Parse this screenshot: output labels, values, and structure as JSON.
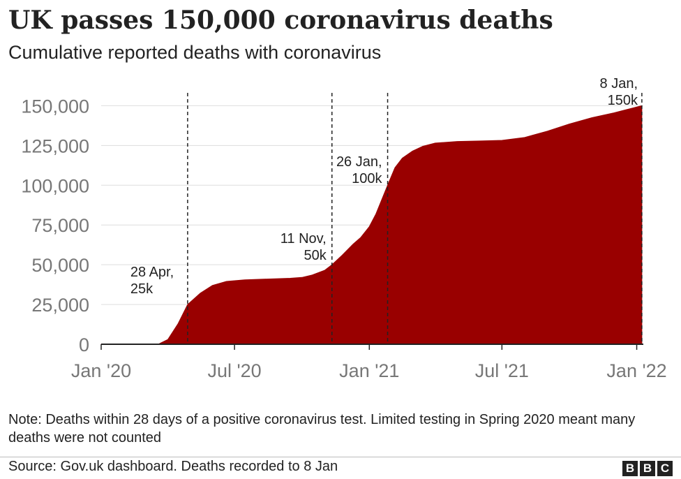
{
  "header": {
    "title": "UK passes 150,000 coronavirus deaths",
    "subtitle": "Cumulative reported deaths with coronavirus"
  },
  "footer": {
    "note": "Note: Deaths within 28 days of a positive coronavirus test. Limited testing in Spring 2020 meant many deaths were not counted",
    "source": "Source: Gov.uk dashboard. Deaths recorded to 8 Jan",
    "logo_letters": [
      "B",
      "B",
      "C"
    ]
  },
  "colors": {
    "area_fill": "#990000",
    "grid": "#dddddd",
    "axis": "#222222",
    "tick_text": "#777777",
    "text": "#222222"
  },
  "chart_data": {
    "type": "area",
    "title": "UK passes 150,000 coronavirus deaths",
    "subtitle": "Cumulative reported deaths with coronavirus",
    "xlabel": "",
    "ylabel": "",
    "xlim": [
      "2020-01-01",
      "2022-01-10"
    ],
    "ylim": [
      0,
      155000
    ],
    "grid": true,
    "yticks": [
      0,
      25000,
      50000,
      75000,
      100000,
      125000,
      150000
    ],
    "ytick_labels": [
      "0",
      "25,000",
      "50,000",
      "75,000",
      "100,000",
      "125,000",
      "150,000"
    ],
    "xticks": [
      "2020-01-01",
      "2020-07-01",
      "2021-01-01",
      "2021-07-01",
      "2022-01-01"
    ],
    "xtick_labels": [
      "Jan '20",
      "Jul '20",
      "Jan '21",
      "Jul '21",
      "Jan '22"
    ],
    "series": [
      {
        "x": [
          "2020-01-01",
          "2020-03-05",
          "2020-03-20",
          "2020-04-01",
          "2020-04-15",
          "2020-04-28",
          "2020-05-15",
          "2020-06-01",
          "2020-06-20",
          "2020-07-15",
          "2020-08-15",
          "2020-09-15",
          "2020-10-01",
          "2020-10-15",
          "2020-11-01",
          "2020-11-11",
          "2020-11-25",
          "2020-12-10",
          "2020-12-20",
          "2021-01-01",
          "2021-01-10",
          "2021-01-26",
          "2021-02-05",
          "2021-02-15",
          "2021-03-01",
          "2021-03-15",
          "2021-04-01",
          "2021-05-01",
          "2021-06-01",
          "2021-07-01",
          "2021-08-01",
          "2021-09-01",
          "2021-10-01",
          "2021-11-01",
          "2021-12-01",
          "2022-01-08"
        ],
        "values": [
          0,
          0,
          200,
          3000,
          13000,
          25000,
          32000,
          37000,
          39500,
          40500,
          41000,
          41500,
          42000,
          43500,
          46500,
          50000,
          56000,
          63000,
          67000,
          74000,
          82000,
          100000,
          111000,
          117000,
          121500,
          124500,
          126500,
          127500,
          127800,
          128200,
          130000,
          134000,
          138500,
          142500,
          145500,
          150000
        ]
      }
    ],
    "annotations": [
      {
        "date": "2020-04-28",
        "line1": "28 Apr,",
        "line2": "25k",
        "align": "left"
      },
      {
        "date": "2020-11-11",
        "line1": "11 Nov,",
        "line2": "50k",
        "align": "right"
      },
      {
        "date": "2021-01-26",
        "line1": "26 Jan,",
        "line2": "100k",
        "align": "right"
      },
      {
        "date": "2022-01-08",
        "line1": "8 Jan,",
        "line2": "150k",
        "align": "left"
      }
    ]
  }
}
